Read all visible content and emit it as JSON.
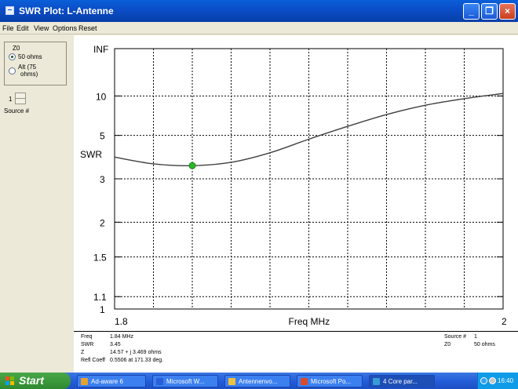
{
  "window": {
    "title": "SWR Plot: L-Antenne",
    "minimize": "_",
    "restore": "❐",
    "close": "×"
  },
  "menu": [
    "File",
    "Edit",
    "View",
    "Options",
    "Reset"
  ],
  "left_panel": {
    "group_label": "Z0",
    "option1": "50 ohms",
    "option2_line1": "Alt (75",
    "option2_line2": "ohms)",
    "source_value": "1",
    "source_label": "Source #"
  },
  "chart_data": {
    "type": "line",
    "title": "",
    "xlabel": "Freq MHz",
    "ylabel": "SWR",
    "x_tick_labels": [
      "1.8",
      "2"
    ],
    "y_tick_labels": [
      "INF",
      "10",
      "5",
      "SWR",
      "3",
      "2",
      "1.5",
      "1.1",
      "1"
    ],
    "xlim": [
      1.8,
      2.0
    ],
    "ylim": [
      1,
      "INF"
    ],
    "y_scale": "reflection-coefficient (SWR)",
    "grid": true,
    "series": [
      {
        "x": [
          1.8,
          1.82,
          1.84,
          1.86,
          1.88,
          1.9,
          1.92,
          1.94,
          1.96,
          1.98,
          2.0
        ],
        "y": [
          3.8,
          3.52,
          3.45,
          3.58,
          4.0,
          4.75,
          5.7,
          6.9,
          8.2,
          9.4,
          10.6
        ],
        "color": "#404040"
      }
    ],
    "marker": {
      "x": 1.84,
      "y": 3.45,
      "color": "#28b828"
    }
  },
  "readout": {
    "freq_label": "Freq",
    "freq_value": "1.84 MHz",
    "swr_label": "SWR",
    "swr_value": "3.45",
    "z_label": "Z",
    "z_value": "14.57 + j 3.469 ohms",
    "refl_label": "Refl Coeff",
    "refl_value": "0.5506 at 171.33 deg.",
    "source_label": "Source #",
    "source_value": "1",
    "z0_label": "Z0",
    "z0_value": "50 ohms"
  },
  "taskbar": {
    "start": "Start",
    "tasks": [
      "Ad-aware 6",
      "Microsoft W...",
      "Antennenvo...",
      "Microsoft Po...",
      "4 Core par..."
    ],
    "task_colors": [
      "#e8a030",
      "#2a5fd8",
      "#f0c040",
      "#d84a2a",
      "#3a9ad8"
    ],
    "clock": "16:40"
  }
}
